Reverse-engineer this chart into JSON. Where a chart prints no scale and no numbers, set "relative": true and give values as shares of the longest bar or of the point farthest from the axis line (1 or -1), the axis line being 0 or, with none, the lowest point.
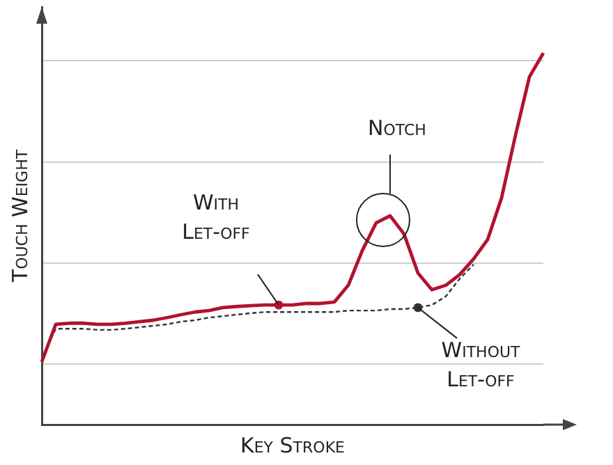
{
  "chart_data": {
    "type": "line",
    "relative": true,
    "xlabel": "Key Stroke",
    "ylabel": "Touch Weight",
    "grid": "y",
    "marker": "none",
    "legend": false,
    "categories": [
      null,
      null,
      null,
      null,
      null,
      null,
      null,
      null,
      null,
      null,
      null,
      null,
      null,
      null,
      null,
      null,
      null,
      null,
      null,
      null,
      null,
      null,
      null,
      null,
      null,
      null,
      null,
      null,
      null,
      null,
      null,
      null,
      null,
      null,
      null,
      null,
      null
    ],
    "series": [
      {
        "color": "#b3122e",
        "values": [
          0.169,
          0.27,
          0.273,
          0.273,
          0.27,
          0.27,
          0.273,
          0.277,
          0.281,
          0.288,
          0.296,
          0.303,
          0.307,
          0.315,
          0.318,
          0.32,
          0.322,
          0.322,
          0.322,
          0.326,
          0.326,
          0.33,
          0.375,
          0.468,
          0.543,
          0.562,
          0.513,
          0.408,
          0.363,
          0.375,
          0.404,
          0.446,
          0.498,
          0.61,
          0.779,
          0.936,
          1.0
        ]
      },
      {
        "color": "#333333",
        "line_style": "dashed",
        "values": [
          0.18,
          0.258,
          0.258,
          0.258,
          0.255,
          0.255,
          0.258,
          0.262,
          0.266,
          0.27,
          0.277,
          0.281,
          0.288,
          0.292,
          0.296,
          0.3,
          0.303,
          0.303,
          0.303,
          0.303,
          0.303,
          0.303,
          0.307,
          0.307,
          0.307,
          0.311,
          0.311,
          0.315,
          0.322,
          0.345,
          0.393,
          0.431,
          null,
          null,
          null,
          null,
          null
        ]
      }
    ],
    "annotations": [
      "With Let-off",
      "Notch",
      "Without Let-off"
    ]
  }
}
